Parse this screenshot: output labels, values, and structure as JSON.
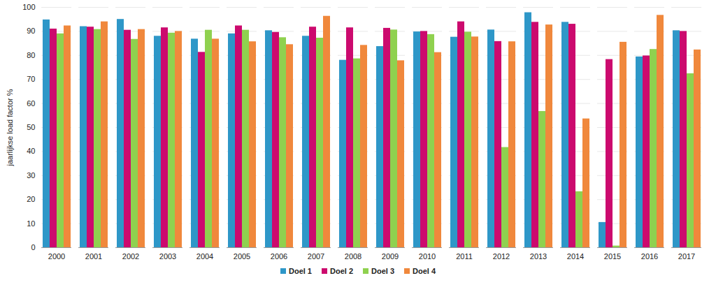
{
  "chart_data": {
    "type": "bar",
    "y_label": "jaarlijkse load factor %",
    "categories": [
      "2000",
      "2001",
      "2002",
      "2003",
      "2004",
      "2005",
      "2006",
      "2007",
      "2008",
      "2009",
      "2010",
      "2011",
      "2012",
      "2013",
      "2014",
      "2015",
      "2016",
      "2017"
    ],
    "series": [
      {
        "name": "Doel 1",
        "color": "#2e97c8",
        "values": [
          94.8,
          92,
          95,
          88,
          86.8,
          89,
          90.3,
          88,
          78,
          83.7,
          89.8,
          87.6,
          90.6,
          97.8,
          93.8,
          10.5,
          79.4,
          90.3
        ]
      },
      {
        "name": "Doel 2",
        "color": "#cc0a6e",
        "values": [
          91,
          91.8,
          90.5,
          91.5,
          81.3,
          92.3,
          89.6,
          91.8,
          91.5,
          91.3,
          90,
          94,
          85.8,
          93.8,
          93,
          78.3,
          79.8,
          90
        ]
      },
      {
        "name": "Doel 3",
        "color": "#8fd14f",
        "values": [
          89,
          90.8,
          86.7,
          89.3,
          90.5,
          90.5,
          87.4,
          87.2,
          78.6,
          90.6,
          88.7,
          89.7,
          41.7,
          56.7,
          23.3,
          0.7,
          82.5,
          72.4
        ]
      },
      {
        "name": "Doel 4",
        "color": "#f0883c",
        "values": [
          92.3,
          94,
          90.8,
          90,
          86.8,
          85.7,
          84.5,
          96.3,
          84.2,
          77.8,
          81.2,
          87.7,
          85.7,
          92.7,
          53.6,
          85.5,
          96.7,
          82.3
        ]
      }
    ],
    "ylim": [
      0,
      100
    ],
    "yticks": [
      0,
      10,
      20,
      30,
      40,
      50,
      60,
      70,
      80,
      90,
      100
    ],
    "grid": true,
    "legend": "bottom"
  }
}
